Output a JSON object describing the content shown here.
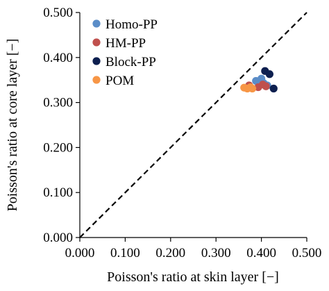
{
  "chart_data": {
    "type": "scatter",
    "xlabel": "Poisson's ratio at skin layer [−]",
    "ylabel": "Poisson's ratio at core layer [−]",
    "xlim": [
      0,
      0.5
    ],
    "ylim": [
      0,
      0.5
    ],
    "x_ticks": [
      "0.000",
      "0.100",
      "0.200",
      "0.300",
      "0.400",
      "0.500"
    ],
    "y_ticks": [
      "0.000",
      "0.100",
      "0.200",
      "0.300",
      "0.400",
      "0.500"
    ],
    "grid": false,
    "legend_position": "top-left",
    "reference_line": {
      "style": "dashed",
      "from": [
        0,
        0
      ],
      "to": [
        0.5,
        0.5
      ]
    },
    "series": [
      {
        "name": "Homo-PP",
        "color": "#5b8dc8",
        "points": [
          [
            0.388,
            0.348
          ],
          [
            0.4,
            0.353
          ],
          [
            0.405,
            0.343
          ],
          [
            0.413,
            0.338
          ]
        ]
      },
      {
        "name": "HM-PP",
        "color": "#c0504d",
        "points": [
          [
            0.373,
            0.338
          ],
          [
            0.393,
            0.334
          ],
          [
            0.403,
            0.34
          ],
          [
            0.41,
            0.336
          ]
        ]
      },
      {
        "name": "Block-PP",
        "color": "#0d1f4f",
        "points": [
          [
            0.408,
            0.37
          ],
          [
            0.418,
            0.363
          ],
          [
            0.427,
            0.331
          ]
        ]
      },
      {
        "name": "POM",
        "color": "#f79646",
        "points": [
          [
            0.362,
            0.333
          ],
          [
            0.369,
            0.331
          ],
          [
            0.376,
            0.334
          ],
          [
            0.38,
            0.331
          ]
        ]
      }
    ]
  }
}
